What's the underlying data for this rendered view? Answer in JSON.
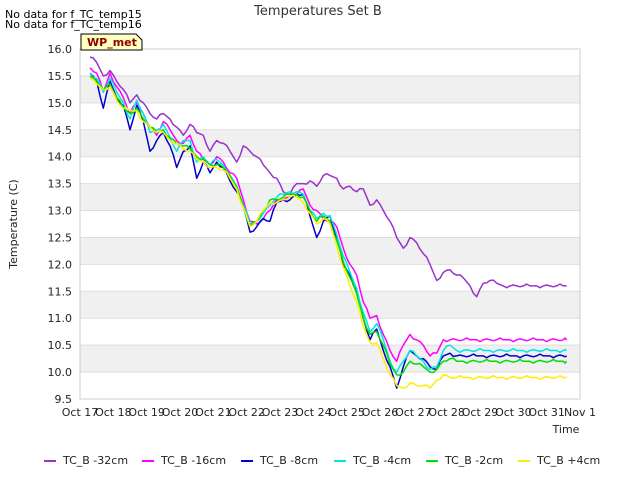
{
  "notes": [
    "No data for f_TC_temp15",
    "No data for f_TC_temp16"
  ],
  "badge": "WP_met",
  "chart_data": {
    "type": "line",
    "title": "Temperatures Set B",
    "xlabel": "Time",
    "ylabel": "Temperature (C)",
    "xlim": [
      0,
      15
    ],
    "ylim": [
      9.5,
      16.0
    ],
    "x_tick_values": [
      0,
      1,
      2,
      3,
      4,
      5,
      6,
      7,
      8,
      9,
      10,
      11,
      12,
      13,
      14,
      15
    ],
    "x_tick_labels": [
      "Oct 17",
      "Oct 18",
      "Oct 19",
      "Oct 20",
      "Oct 21",
      "Oct 22",
      "Oct 23",
      "Oct 24",
      "Oct 25",
      "Oct 26",
      "Oct 27",
      "Oct 28",
      "Oct 29",
      "Oct 30",
      "Oct 31",
      "Nov 1"
    ],
    "y_ticks": [
      9.5,
      10.0,
      10.5,
      11.0,
      11.5,
      12.0,
      12.5,
      13.0,
      13.5,
      14.0,
      14.5,
      15.0,
      15.5,
      16.0
    ],
    "grid": true,
    "legend_position": "bottom",
    "x": [
      0.3,
      0.5,
      0.7,
      0.9,
      1.1,
      1.3,
      1.5,
      1.7,
      1.9,
      2.1,
      2.3,
      2.5,
      2.7,
      2.9,
      3.1,
      3.3,
      3.5,
      3.7,
      3.9,
      4.1,
      4.3,
      4.5,
      4.7,
      4.9,
      5.1,
      5.3,
      5.5,
      5.7,
      5.9,
      6.1,
      6.3,
      6.5,
      6.7,
      6.9,
      7.1,
      7.3,
      7.5,
      7.7,
      7.9,
      8.1,
      8.3,
      8.5,
      8.7,
      8.9,
      9.1,
      9.3,
      9.5,
      9.7,
      9.9,
      10.1,
      10.3,
      10.5,
      10.7,
      10.9,
      11.1,
      11.3,
      11.5,
      11.7,
      11.9,
      12.1,
      12.3,
      12.5,
      12.7,
      12.9,
      13.1,
      13.3,
      13.5,
      13.7,
      13.9,
      14.1,
      14.3,
      14.5,
      14.6
    ],
    "series": [
      {
        "name": "TC_B -32cm",
        "color": "#9933cc",
        "values": [
          15.85,
          15.75,
          15.5,
          15.6,
          15.4,
          15.25,
          15.0,
          15.15,
          15.0,
          14.8,
          14.7,
          14.8,
          14.7,
          14.55,
          14.4,
          14.6,
          14.45,
          14.4,
          14.1,
          14.3,
          14.25,
          14.1,
          13.9,
          14.2,
          14.1,
          14.0,
          13.85,
          13.7,
          13.6,
          13.35,
          13.3,
          13.5,
          13.5,
          13.55,
          13.45,
          13.65,
          13.65,
          13.6,
          13.4,
          13.45,
          13.35,
          13.4,
          13.1,
          13.2,
          13.0,
          12.8,
          12.5,
          12.3,
          12.5,
          12.4,
          12.2,
          12.0,
          11.7,
          11.85,
          11.9,
          11.8,
          11.75,
          11.6,
          11.4,
          11.65,
          11.7,
          11.65,
          11.6,
          11.6,
          11.6,
          11.6,
          11.6,
          11.6,
          11.6,
          11.6,
          11.6,
          11.6,
          11.6
        ]
      },
      {
        "name": "TC_B -16cm",
        "color": "#ff00ff",
        "values": [
          15.65,
          15.55,
          15.2,
          15.55,
          15.3,
          15.1,
          14.8,
          15.0,
          14.8,
          14.55,
          14.4,
          14.65,
          14.5,
          14.3,
          14.25,
          14.4,
          14.1,
          13.95,
          13.85,
          14.0,
          13.9,
          13.7,
          13.6,
          13.2,
          12.8,
          12.75,
          12.85,
          13.0,
          13.2,
          13.2,
          13.25,
          13.3,
          13.4,
          13.1,
          13.0,
          12.85,
          12.8,
          12.7,
          12.3,
          12.0,
          11.8,
          11.3,
          11.0,
          11.05,
          10.7,
          10.4,
          10.2,
          10.5,
          10.7,
          10.6,
          10.5,
          10.3,
          10.35,
          10.6,
          10.6,
          10.6,
          10.6,
          10.6,
          10.6,
          10.6,
          10.6,
          10.6,
          10.6,
          10.6,
          10.6,
          10.6,
          10.6,
          10.6,
          10.6,
          10.6,
          10.6,
          10.6,
          10.6
        ]
      },
      {
        "name": "TC_B -8cm",
        "color": "#0000cc",
        "values": [
          15.55,
          15.4,
          14.9,
          15.4,
          15.1,
          14.95,
          14.5,
          14.95,
          14.65,
          14.1,
          14.3,
          14.45,
          14.2,
          13.8,
          14.1,
          14.2,
          13.6,
          13.9,
          13.7,
          13.9,
          13.8,
          13.55,
          13.35,
          13.1,
          12.6,
          12.7,
          12.85,
          12.8,
          13.15,
          13.2,
          13.2,
          13.3,
          13.3,
          12.9,
          12.5,
          12.8,
          12.9,
          12.5,
          12.0,
          11.8,
          11.5,
          11.0,
          10.6,
          10.8,
          10.4,
          10.1,
          9.7,
          10.1,
          10.4,
          10.3,
          10.25,
          10.1,
          10.05,
          10.3,
          10.35,
          10.3,
          10.3,
          10.3,
          10.3,
          10.3,
          10.3,
          10.3,
          10.3,
          10.3,
          10.3,
          10.3,
          10.3,
          10.3,
          10.3,
          10.3,
          10.3,
          10.3,
          10.3
        ]
      },
      {
        "name": "TC_B -4cm",
        "color": "#00e5e5",
        "values": [
          15.55,
          15.45,
          15.2,
          15.45,
          15.2,
          15.0,
          14.7,
          15.05,
          14.8,
          14.45,
          14.5,
          14.6,
          14.35,
          14.1,
          14.3,
          14.3,
          13.9,
          14.0,
          13.85,
          13.95,
          13.85,
          13.65,
          13.45,
          13.1,
          12.75,
          12.8,
          12.95,
          13.1,
          13.25,
          13.3,
          13.35,
          13.35,
          13.3,
          13.0,
          12.85,
          12.95,
          12.9,
          12.55,
          12.15,
          11.85,
          11.55,
          11.1,
          10.75,
          10.9,
          10.6,
          10.2,
          10.0,
          10.2,
          10.4,
          10.3,
          10.2,
          10.05,
          10.1,
          10.4,
          10.5,
          10.4,
          10.4,
          10.4,
          10.4,
          10.4,
          10.4,
          10.4,
          10.4,
          10.4,
          10.4,
          10.4,
          10.4,
          10.4,
          10.4,
          10.4,
          10.4,
          10.4,
          10.4
        ]
      },
      {
        "name": "TC_B -2cm",
        "color": "#00dd00",
        "values": [
          15.5,
          15.4,
          15.25,
          15.35,
          15.1,
          14.9,
          14.8,
          14.9,
          14.7,
          14.55,
          14.45,
          14.5,
          14.35,
          14.25,
          14.2,
          14.15,
          14.0,
          13.95,
          13.85,
          13.85,
          13.8,
          13.65,
          13.45,
          13.05,
          12.7,
          12.8,
          13.0,
          13.2,
          13.2,
          13.25,
          13.3,
          13.3,
          13.25,
          13.0,
          12.8,
          12.9,
          12.8,
          12.45,
          12.05,
          11.75,
          11.45,
          11.0,
          10.7,
          10.75,
          10.5,
          10.15,
          9.95,
          10.0,
          10.2,
          10.15,
          10.1,
          10.0,
          10.05,
          10.2,
          10.25,
          10.2,
          10.2,
          10.2,
          10.2,
          10.2,
          10.2,
          10.2,
          10.2,
          10.2,
          10.2,
          10.2,
          10.2,
          10.2,
          10.2,
          10.2,
          10.2,
          10.2,
          10.2
        ]
      },
      {
        "name": "TC_B +4cm",
        "color": "#ffee00",
        "values": [
          15.45,
          15.35,
          15.25,
          15.3,
          15.05,
          14.9,
          14.85,
          14.85,
          14.65,
          14.55,
          14.45,
          14.45,
          14.3,
          14.25,
          14.15,
          14.1,
          13.95,
          13.9,
          13.8,
          13.8,
          13.75,
          13.6,
          13.4,
          13.05,
          12.7,
          12.8,
          13.0,
          13.15,
          13.15,
          13.2,
          13.25,
          13.25,
          13.15,
          12.95,
          12.75,
          12.85,
          12.75,
          12.35,
          11.95,
          11.6,
          11.3,
          10.85,
          10.55,
          10.55,
          10.25,
          9.95,
          9.75,
          9.7,
          9.8,
          9.75,
          9.75,
          9.7,
          9.85,
          9.95,
          9.9,
          9.9,
          9.9,
          9.9,
          9.9,
          9.9,
          9.9,
          9.9,
          9.9,
          9.9,
          9.9,
          9.9,
          9.9,
          9.9,
          9.9,
          9.9,
          9.9,
          9.9,
          9.9
        ]
      }
    ]
  }
}
